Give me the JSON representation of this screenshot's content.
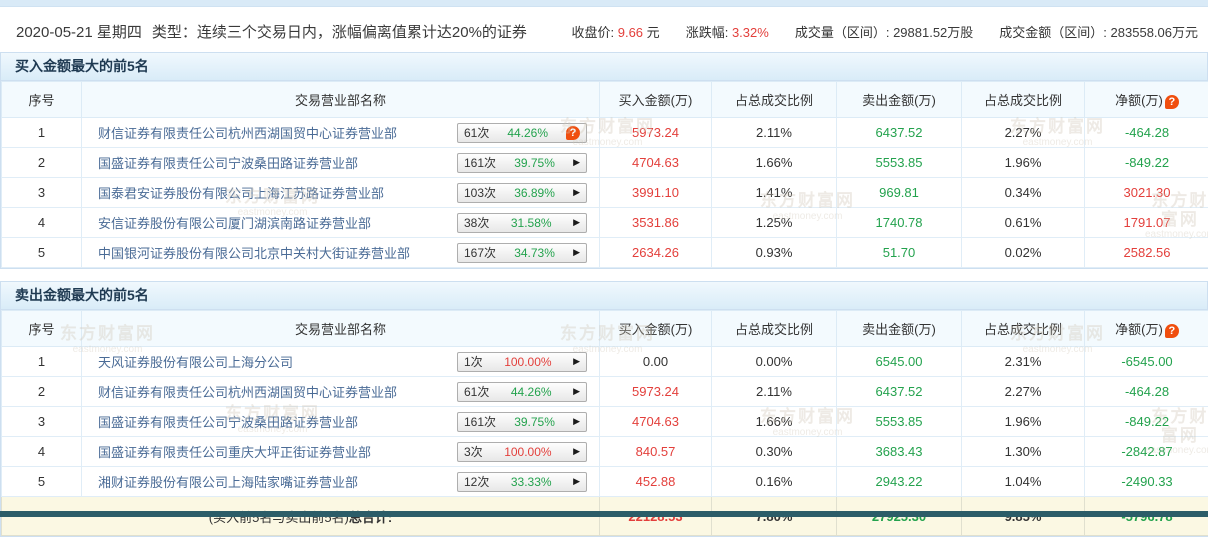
{
  "topbar": {
    "date": "2020-05-21 星期四",
    "type": "类型：连续三个交易日内，涨幅偏离值累计达20%的证券",
    "close_label": "收盘价:",
    "close_value": "9.66",
    "close_unit": "元",
    "chg_label": "涨跌幅:",
    "chg_value": "3.32%",
    "vol_label": "成交量（区间）:",
    "vol_value": "29881.52万股",
    "amt_label": "成交金额（区间）:",
    "amt_value": "283558.06万元"
  },
  "columns": [
    "序号",
    "交易营业部名称",
    "买入金额(万)",
    "占总成交比例",
    "卖出金额(万)",
    "占总成交比例",
    "净额(万)"
  ],
  "icons": {
    "question": "?",
    "arrow": "▶"
  },
  "buy_table": {
    "title": "买入金额最大的前5名",
    "rows": [
      {
        "no": "1",
        "name": "财信证券有限责任公司杭州西湖国贸中心证券营业部",
        "times": "61次",
        "pct": "44.26%",
        "pct_class": "green",
        "icon": "question",
        "buy": "5973.24",
        "buy_class": "red",
        "buy_pct": "2.11%",
        "sell": "6437.52",
        "sell_class": "green",
        "sell_pct": "2.27%",
        "net": "-464.28",
        "net_class": "green"
      },
      {
        "no": "2",
        "name": "国盛证券有限责任公司宁波桑田路证券营业部",
        "times": "161次",
        "pct": "39.75%",
        "pct_class": "green",
        "icon": "arrow",
        "buy": "4704.63",
        "buy_class": "red",
        "buy_pct": "1.66%",
        "sell": "5553.85",
        "sell_class": "green",
        "sell_pct": "1.96%",
        "net": "-849.22",
        "net_class": "green"
      },
      {
        "no": "3",
        "name": "国泰君安证券股份有限公司上海江苏路证券营业部",
        "times": "103次",
        "pct": "36.89%",
        "pct_class": "green",
        "icon": "arrow",
        "buy": "3991.10",
        "buy_class": "red",
        "buy_pct": "1.41%",
        "sell": "969.81",
        "sell_class": "green",
        "sell_pct": "0.34%",
        "net": "3021.30",
        "net_class": "red"
      },
      {
        "no": "4",
        "name": "安信证券股份有限公司厦门湖滨南路证券营业部",
        "times": "38次",
        "pct": "31.58%",
        "pct_class": "green",
        "icon": "arrow",
        "buy": "3531.86",
        "buy_class": "red",
        "buy_pct": "1.25%",
        "sell": "1740.78",
        "sell_class": "green",
        "sell_pct": "0.61%",
        "net": "1791.07",
        "net_class": "red"
      },
      {
        "no": "5",
        "name": "中国银河证券股份有限公司北京中关村大街证券营业部",
        "times": "167次",
        "pct": "34.73%",
        "pct_class": "green",
        "icon": "arrow",
        "buy": "2634.26",
        "buy_class": "red",
        "buy_pct": "0.93%",
        "sell": "51.70",
        "sell_class": "green",
        "sell_pct": "0.02%",
        "net": "2582.56",
        "net_class": "red"
      }
    ]
  },
  "sell_table": {
    "title": "卖出金额最大的前5名",
    "rows": [
      {
        "no": "1",
        "name": "天风证券股份有限公司上海分公司",
        "times": "1次",
        "pct": "100.00%",
        "pct_class": "red",
        "icon": "arrow",
        "buy": "0.00",
        "buy_class": "",
        "buy_pct": "0.00%",
        "sell": "6545.00",
        "sell_class": "green",
        "sell_pct": "2.31%",
        "net": "-6545.00",
        "net_class": "green"
      },
      {
        "no": "2",
        "name": "财信证券有限责任公司杭州西湖国贸中心证券营业部",
        "times": "61次",
        "pct": "44.26%",
        "pct_class": "green",
        "icon": "arrow",
        "buy": "5973.24",
        "buy_class": "red",
        "buy_pct": "2.11%",
        "sell": "6437.52",
        "sell_class": "green",
        "sell_pct": "2.27%",
        "net": "-464.28",
        "net_class": "green"
      },
      {
        "no": "3",
        "name": "国盛证券有限责任公司宁波桑田路证券营业部",
        "times": "161次",
        "pct": "39.75%",
        "pct_class": "green",
        "icon": "arrow",
        "buy": "4704.63",
        "buy_class": "red",
        "buy_pct": "1.66%",
        "sell": "5553.85",
        "sell_class": "green",
        "sell_pct": "1.96%",
        "net": "-849.22",
        "net_class": "green"
      },
      {
        "no": "4",
        "name": "国盛证券有限责任公司重庆大坪正街证券营业部",
        "times": "3次",
        "pct": "100.00%",
        "pct_class": "red",
        "icon": "arrow",
        "buy": "840.57",
        "buy_class": "red",
        "buy_pct": "0.30%",
        "sell": "3683.43",
        "sell_class": "green",
        "sell_pct": "1.30%",
        "net": "-2842.87",
        "net_class": "green"
      },
      {
        "no": "5",
        "name": "湘财证券股份有限公司上海陆家嘴证券营业部",
        "times": "12次",
        "pct": "33.33%",
        "pct_class": "green",
        "icon": "arrow",
        "buy": "452.88",
        "buy_class": "red",
        "buy_pct": "0.16%",
        "sell": "2943.22",
        "sell_class": "green",
        "sell_pct": "1.04%",
        "net": "-2490.33",
        "net_class": "green"
      }
    ]
  },
  "total": {
    "label_normal": "(买入前5名与卖出前5名)",
    "label_bold": "总合计:",
    "buy": "22128.53",
    "buy_pct": "7.80%",
    "sell": "27925.30",
    "sell_pct": "9.85%",
    "net": "-5796.78"
  },
  "watermark": {
    "brand": "东方财富网",
    "domain": "eastmoney.com"
  },
  "colors": {
    "red": "#e33f3b",
    "green": "#23a24d",
    "orange": "#f04e0e",
    "link": "#4a6b96",
    "teal": "#2c5d68",
    "total_bg": "#fbf8e3",
    "header_bg": "#f3fafe",
    "border": "#cddff0"
  }
}
